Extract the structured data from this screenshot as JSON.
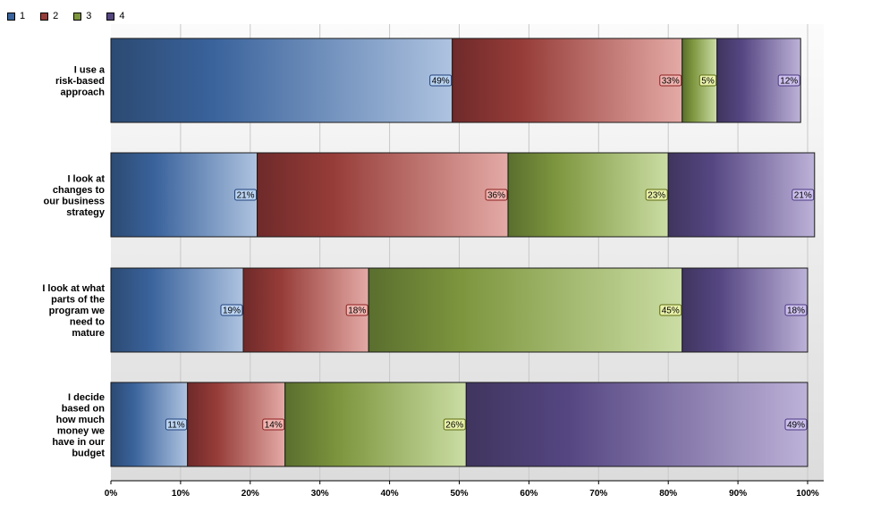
{
  "chart_data": {
    "type": "bar",
    "orientation": "horizontal",
    "stacked": true,
    "percent": true,
    "categories": [
      [
        "I use a",
        "risk-based",
        "approach"
      ],
      [
        "I look at",
        "changes to",
        "our business",
        "strategy"
      ],
      [
        "I look at what",
        "parts of the",
        "program we",
        "need to",
        "mature"
      ],
      [
        "I decide",
        "based on",
        "how much",
        "money we",
        "have in our",
        "budget"
      ]
    ],
    "series": [
      {
        "name": "1",
        "values": [
          49,
          21,
          19,
          11
        ],
        "labels": [
          "49%",
          "21%",
          "19%",
          "11%"
        ]
      },
      {
        "name": "2",
        "values": [
          33,
          36,
          18,
          14
        ],
        "labels": [
          "33%",
          "36%",
          "18%",
          "14%"
        ]
      },
      {
        "name": "3",
        "values": [
          5,
          23,
          45,
          26
        ],
        "labels": [
          "5%",
          "23%",
          "45%",
          "26%"
        ]
      },
      {
        "name": "4",
        "values": [
          12,
          21,
          18,
          49
        ],
        "labels": [
          "12%",
          "21%",
          "18%",
          "49%"
        ]
      }
    ],
    "xlim": [
      0,
      100
    ],
    "x_ticks": [
      "0%",
      "10%",
      "20%",
      "30%",
      "40%",
      "50%",
      "60%",
      "70%",
      "80%",
      "90%",
      "100%"
    ],
    "grid": "vertical",
    "legend_position": "top-left",
    "title": "",
    "xlabel": "",
    "ylabel": ""
  },
  "colors": {
    "series_dark": [
      "#2c4a72",
      "#6e2a2a",
      "#5a6e2e",
      "#3f355e"
    ],
    "series_mid": [
      "#3a639c",
      "#963c38",
      "#7d963e",
      "#554682"
    ],
    "series_light": [
      "#aec3e0",
      "#e4aaa6",
      "#cbdda4",
      "#bdb2d8"
    ],
    "label_bg": [
      "#b9d2f0",
      "#f0b4b0",
      "#e8f0a8",
      "#ccc0ec"
    ],
    "label_border": [
      "#1f3f7a",
      "#8a1e1e",
      "#5a6a10",
      "#4a3680"
    ]
  }
}
